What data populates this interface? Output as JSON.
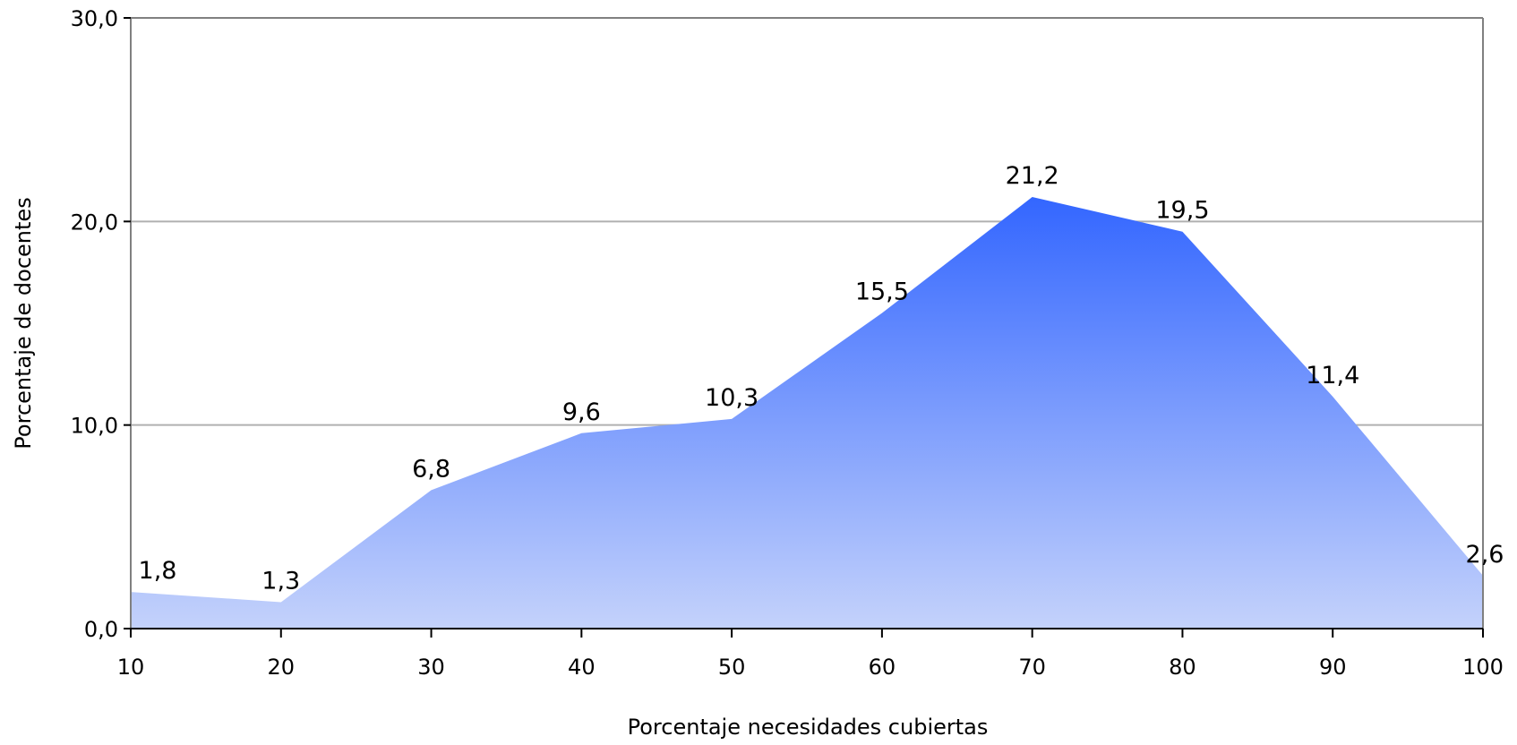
{
  "chart_data": {
    "type": "area",
    "x": [
      10,
      20,
      30,
      40,
      50,
      60,
      70,
      80,
      90,
      100
    ],
    "values": [
      1.8,
      1.3,
      6.8,
      9.6,
      10.3,
      15.5,
      21.2,
      19.5,
      11.4,
      2.6
    ],
    "data_labels": [
      "1,8",
      "1,3",
      "6,8",
      "9,6",
      "10,3",
      "15,5",
      "21,2",
      "19,5",
      "11,4",
      "2,6"
    ],
    "x_tick_labels": [
      "10",
      "20",
      "30",
      "40",
      "50",
      "60",
      "70",
      "80",
      "90",
      "100"
    ],
    "y_ticks": [
      0,
      10,
      20,
      30
    ],
    "y_tick_labels": [
      "0,0",
      "10,0",
      "20,0",
      "30,0"
    ],
    "xlabel": "Porcentaje necesidades cubiertas",
    "ylabel": "Porcentaje de docentes",
    "xlim": [
      10,
      100
    ],
    "ylim": [
      0,
      30
    ],
    "grid": true,
    "legend": "none",
    "colors": {
      "fill_top": "#3366ff",
      "fill_bottom": "#c4d2fb",
      "grid": "#b0b0b0",
      "axis": "#808080"
    }
  }
}
